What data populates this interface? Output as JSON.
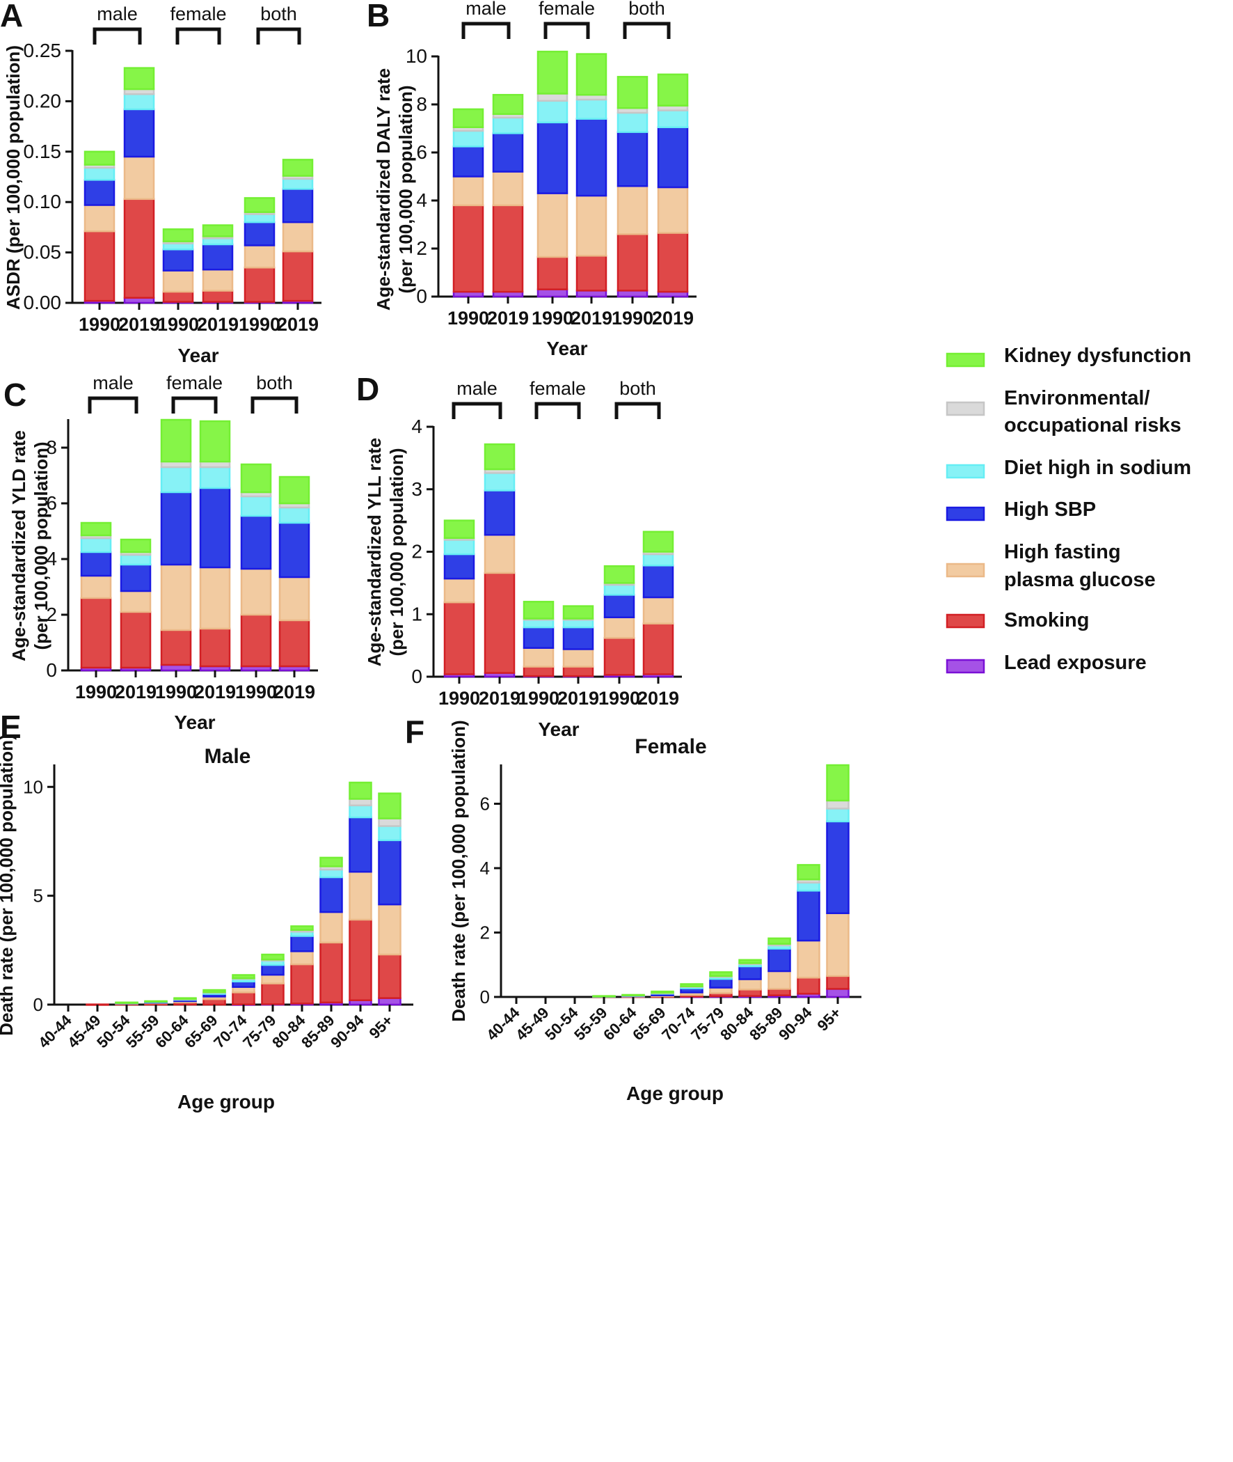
{
  "legend": {
    "entries": [
      {
        "key": "kidney",
        "label_lines": [
          "Kidney dysfunction"
        ]
      },
      {
        "key": "env",
        "label_lines": [
          "Environmental/",
          "occupational risks"
        ]
      },
      {
        "key": "sodium",
        "label_lines": [
          "Diet high in sodium"
        ]
      },
      {
        "key": "sbp",
        "label_lines": [
          "High SBP"
        ]
      },
      {
        "key": "fpg",
        "label_lines": [
          "High fasting",
          "plasma glucose"
        ]
      },
      {
        "key": "smoking",
        "label_lines": [
          "Smoking"
        ]
      },
      {
        "key": "lead",
        "label_lines": [
          "Lead exposure"
        ]
      }
    ]
  },
  "colors": {
    "lead": {
      "fill": "#a552e6",
      "stroke": "#7a10d6"
    },
    "smoking": {
      "fill": "#df4848",
      "stroke": "#d21f24"
    },
    "fpg": {
      "fill": "#f2cba1",
      "stroke": "#ebb988"
    },
    "sbp": {
      "fill": "#2f3fe6",
      "stroke": "#1a1ae2"
    },
    "sodium": {
      "fill": "#87f2f6",
      "stroke": "#66eef4"
    },
    "env": {
      "fill": "#dadada",
      "stroke": "#c6c6c6"
    },
    "kidney": {
      "fill": "#86f548",
      "stroke": "#74ef33"
    }
  },
  "chart_data": [
    {
      "panel": "A",
      "type": "bar",
      "stacked": true,
      "title": "",
      "xlabel": "Year",
      "ylabel": "ASDR (per 100,000 population)",
      "ylim": [
        0,
        0.25
      ],
      "yticks": [
        "0.00",
        "0.05",
        "0.10",
        "0.15",
        "0.20",
        "0.25"
      ],
      "categories": [
        "1990",
        "2019",
        "1990",
        "2019",
        "1990",
        "2019"
      ],
      "groups": [
        "male",
        "female",
        "both"
      ],
      "series": [
        {
          "name": "Lead exposure",
          "values": [
            0.002,
            0.005,
            0.001,
            0.001,
            0.001,
            0.002
          ]
        },
        {
          "name": "Smoking",
          "values": [
            0.069,
            0.098,
            0.01,
            0.011,
            0.034,
            0.049
          ]
        },
        {
          "name": "High fasting plasma glucose",
          "values": [
            0.026,
            0.042,
            0.021,
            0.021,
            0.022,
            0.029
          ]
        },
        {
          "name": "High SBP",
          "values": [
            0.025,
            0.047,
            0.021,
            0.025,
            0.023,
            0.033
          ]
        },
        {
          "name": "Diet high in sodium",
          "values": [
            0.012,
            0.015,
            0.006,
            0.006,
            0.008,
            0.01
          ]
        },
        {
          "name": "Environmental/occupational risks",
          "values": [
            0.003,
            0.005,
            0.002,
            0.002,
            0.002,
            0.003
          ]
        },
        {
          "name": "Kidney dysfunction",
          "values": [
            0.013,
            0.021,
            0.012,
            0.011,
            0.014,
            0.016
          ]
        }
      ]
    },
    {
      "panel": "B",
      "type": "bar",
      "stacked": true,
      "title": "",
      "xlabel": "Year",
      "ylabel": "Age-standardized DALY rate (per 100,000 population)",
      "ylim": [
        0,
        10
      ],
      "yticks": [
        "0",
        "2",
        "4",
        "6",
        "8",
        "10"
      ],
      "categories": [
        "1990",
        "2019",
        "1990",
        "2019",
        "1990",
        "2019"
      ],
      "groups": [
        "male",
        "female",
        "both"
      ],
      "series": [
        {
          "name": "Lead exposure",
          "values": [
            0.2,
            0.2,
            0.3,
            0.25,
            0.25,
            0.2
          ]
        },
        {
          "name": "Smoking",
          "values": [
            3.6,
            3.6,
            1.35,
            1.45,
            2.35,
            2.45
          ]
        },
        {
          "name": "High fasting plasma glucose",
          "values": [
            1.2,
            1.4,
            2.65,
            2.5,
            2.0,
            1.9
          ]
        },
        {
          "name": "High SBP",
          "values": [
            1.25,
            1.6,
            2.95,
            3.2,
            2.25,
            2.5
          ]
        },
        {
          "name": "Diet high in sodium",
          "values": [
            0.65,
            0.65,
            0.9,
            0.8,
            0.8,
            0.7
          ]
        },
        {
          "name": "Environmental/occupational risks",
          "values": [
            0.15,
            0.15,
            0.3,
            0.2,
            0.2,
            0.2
          ]
        },
        {
          "name": "Kidney dysfunction",
          "values": [
            0.75,
            0.8,
            1.75,
            1.7,
            1.3,
            1.3
          ]
        }
      ]
    },
    {
      "panel": "C",
      "type": "bar",
      "stacked": true,
      "title": "",
      "xlabel": "Year",
      "ylabel": "Age-standardized YLD rate (per 100,000 population)",
      "ylim": [
        0,
        9
      ],
      "yticks": [
        "0",
        "2",
        "4",
        "6",
        "8"
      ],
      "categories": [
        "1990",
        "2019",
        "1990",
        "2019",
        "1990",
        "2019"
      ],
      "groups": [
        "male",
        "female",
        "both"
      ],
      "series": [
        {
          "name": "Lead exposure",
          "values": [
            0.1,
            0.1,
            0.2,
            0.15,
            0.15,
            0.15
          ]
        },
        {
          "name": "Smoking",
          "values": [
            2.5,
            2.0,
            1.25,
            1.35,
            1.85,
            1.65
          ]
        },
        {
          "name": "High fasting plasma glucose",
          "values": [
            0.8,
            0.75,
            2.35,
            2.2,
            1.65,
            1.55
          ]
        },
        {
          "name": "High SBP",
          "values": [
            0.85,
            0.95,
            2.6,
            2.85,
            1.9,
            1.95
          ]
        },
        {
          "name": "Diet high in sodium",
          "values": [
            0.5,
            0.35,
            0.9,
            0.75,
            0.7,
            0.55
          ]
        },
        {
          "name": "Environmental/occupational risks",
          "values": [
            0.1,
            0.1,
            0.2,
            0.2,
            0.15,
            0.15
          ]
        },
        {
          "name": "Kidney dysfunction",
          "values": [
            0.45,
            0.45,
            1.5,
            1.45,
            1.0,
            0.95
          ]
        }
      ]
    },
    {
      "panel": "D",
      "type": "bar",
      "stacked": true,
      "title": "",
      "xlabel": "Year",
      "ylabel": "Age-standardized YLL rate (per 100,000 population)",
      "ylim": [
        0,
        4
      ],
      "yticks": [
        "0",
        "1",
        "2",
        "3",
        "4"
      ],
      "categories": [
        "1990",
        "2019",
        "1990",
        "2019",
        "1990",
        "2019"
      ],
      "groups": [
        "male",
        "female",
        "both"
      ],
      "series": [
        {
          "name": "Lead exposure",
          "values": [
            0.04,
            0.06,
            0.01,
            0.01,
            0.03,
            0.04
          ]
        },
        {
          "name": "Smoking",
          "values": [
            1.15,
            1.6,
            0.15,
            0.15,
            0.59,
            0.81
          ]
        },
        {
          "name": "High fasting plasma glucose",
          "values": [
            0.38,
            0.61,
            0.3,
            0.28,
            0.33,
            0.42
          ]
        },
        {
          "name": "High SBP",
          "values": [
            0.39,
            0.71,
            0.33,
            0.35,
            0.36,
            0.51
          ]
        },
        {
          "name": "Diet high in sodium",
          "values": [
            0.23,
            0.28,
            0.12,
            0.12,
            0.16,
            0.18
          ]
        },
        {
          "name": "Environmental/occupational risks",
          "values": [
            0.03,
            0.06,
            0.02,
            0.02,
            0.03,
            0.04
          ]
        },
        {
          "name": "Kidney dysfunction",
          "values": [
            0.28,
            0.4,
            0.27,
            0.2,
            0.27,
            0.32
          ]
        }
      ]
    },
    {
      "panel": "E",
      "type": "bar",
      "stacked": true,
      "title": "Male",
      "xlabel": "Age group",
      "ylabel": "Death rate (per 100,000 population)",
      "ylim": [
        0,
        11
      ],
      "yticks": [
        "0",
        "5",
        "10"
      ],
      "categories": [
        "40-44",
        "45-49",
        "50-54",
        "55-59",
        "60-64",
        "65-69",
        "70-74",
        "75-79",
        "80-84",
        "85-89",
        "90-94",
        "95+"
      ],
      "series": [
        {
          "name": "Lead exposure",
          "values": [
            0,
            0,
            0,
            0,
            0,
            0,
            0.01,
            0.02,
            0.05,
            0.1,
            0.2,
            0.3
          ]
        },
        {
          "name": "Smoking",
          "values": [
            0,
            0.01,
            0.04,
            0.06,
            0.1,
            0.25,
            0.55,
            0.95,
            1.8,
            2.75,
            3.7,
            2.0
          ]
        },
        {
          "name": "High fasting plasma glucose",
          "values": [
            0,
            0,
            0.02,
            0.03,
            0.06,
            0.12,
            0.25,
            0.4,
            0.6,
            1.4,
            2.2,
            2.3
          ]
        },
        {
          "name": "High SBP",
          "values": [
            0,
            0,
            0.02,
            0.03,
            0.06,
            0.12,
            0.25,
            0.45,
            0.7,
            1.6,
            2.5,
            2.95
          ]
        },
        {
          "name": "Diet high in sodium",
          "values": [
            0,
            0,
            0.01,
            0.02,
            0.03,
            0.06,
            0.12,
            0.2,
            0.2,
            0.35,
            0.55,
            0.65
          ]
        },
        {
          "name": "Environmental/occupational risks",
          "values": [
            0,
            0,
            0,
            0,
            0.01,
            0.02,
            0.03,
            0.05,
            0.08,
            0.15,
            0.3,
            0.35
          ]
        },
        {
          "name": "Kidney dysfunction",
          "values": [
            0,
            0,
            0.01,
            0.02,
            0.04,
            0.1,
            0.15,
            0.23,
            0.17,
            0.4,
            0.75,
            1.15
          ]
        }
      ]
    },
    {
      "panel": "F",
      "type": "bar",
      "stacked": true,
      "title": "Female",
      "xlabel": "Age group",
      "ylabel": "Death rate (per 100,000 population)",
      "ylim": [
        0,
        7.2
      ],
      "yticks": [
        "0",
        "2",
        "4",
        "6"
      ],
      "categories": [
        "40-44",
        "45-49",
        "50-54",
        "55-59",
        "60-64",
        "65-69",
        "70-74",
        "75-79",
        "80-84",
        "85-89",
        "90-94",
        "95+"
      ],
      "series": [
        {
          "name": "Lead exposure",
          "values": [
            0,
            0,
            0,
            0,
            0,
            0,
            0.01,
            0.02,
            0.03,
            0.05,
            0.1,
            0.25
          ]
        },
        {
          "name": "Smoking",
          "values": [
            0,
            0,
            0,
            0.005,
            0.01,
            0.02,
            0.05,
            0.1,
            0.2,
            0.2,
            0.5,
            0.4
          ]
        },
        {
          "name": "High fasting plasma glucose",
          "values": [
            0,
            0,
            0,
            0.005,
            0.01,
            0.03,
            0.08,
            0.17,
            0.32,
            0.55,
            1.15,
            1.95
          ]
        },
        {
          "name": "High SBP",
          "values": [
            0,
            0,
            0,
            0.01,
            0.02,
            0.05,
            0.13,
            0.27,
            0.4,
            0.7,
            1.55,
            2.85
          ]
        },
        {
          "name": "Diet high in sodium",
          "values": [
            0,
            0,
            0,
            0.005,
            0.01,
            0.02,
            0.04,
            0.06,
            0.07,
            0.1,
            0.25,
            0.4
          ]
        },
        {
          "name": "Environmental/occupational risks",
          "values": [
            0,
            0,
            0,
            0,
            0.005,
            0.01,
            0.02,
            0.03,
            0.03,
            0.05,
            0.1,
            0.25
          ]
        },
        {
          "name": "Kidney dysfunction",
          "values": [
            0,
            0,
            0,
            0.005,
            0.01,
            0.04,
            0.07,
            0.12,
            0.1,
            0.17,
            0.45,
            1.1
          ]
        }
      ]
    }
  ]
}
